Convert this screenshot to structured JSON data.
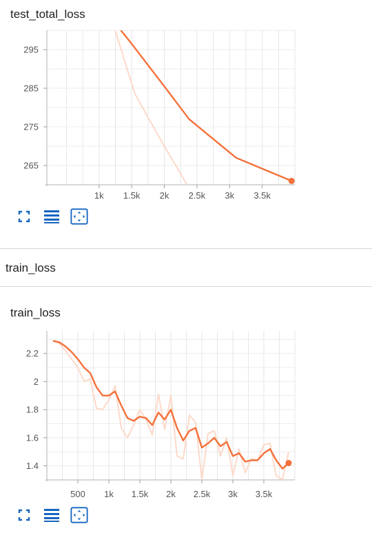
{
  "colors": {
    "accent": "#f4703a",
    "raw": "#fdd9c9",
    "grid": "#e3e3e3",
    "icon": "#1565c0"
  },
  "cards": [
    {
      "title": "test_total_loss",
      "chart_data": {
        "type": "line",
        "title": "test_total_loss",
        "xlim": [
          200,
          4000
        ],
        "ylim": [
          260,
          300
        ],
        "xticks": [
          1000,
          1500,
          2000,
          2500,
          3000,
          3500
        ],
        "xtick_labels": [
          "1k",
          "1.5k",
          "2k",
          "2.5k",
          "3k",
          "3.5k"
        ],
        "yticks": [
          265,
          275,
          285,
          295
        ],
        "ytick_labels": [
          "265",
          "275",
          "285",
          "295"
        ],
        "grid": true,
        "series": [
          {
            "role": "smoothed",
            "x": [
              1100,
              1500,
              2000,
              2380,
              3100,
              3950
            ],
            "y": [
              305,
              296.5,
              285.5,
              277,
              267,
              261
            ]
          },
          {
            "role": "raw",
            "x": [
              1100,
              1550,
              2000,
              2350
            ],
            "y": [
              308,
              283.5,
              270,
              260
            ]
          }
        ]
      }
    },
    {
      "title": "train_loss",
      "chart_data": {
        "type": "line",
        "title": "train_loss",
        "xlim": [
          0,
          4000
        ],
        "ylim": [
          1.3,
          2.36
        ],
        "xticks": [
          500,
          1000,
          1500,
          2000,
          2500,
          3000,
          3500
        ],
        "xtick_labels": [
          "500",
          "1k",
          "1.5k",
          "2k",
          "2.5k",
          "3k",
          "3.5k"
        ],
        "yticks": [
          1.4,
          1.6,
          1.8,
          2.0,
          2.2
        ],
        "ytick_labels": [
          "1.4",
          "1.6",
          "1.8",
          "2",
          "2.2"
        ],
        "grid": true,
        "series": [
          {
            "role": "smoothed",
            "x": [
              100,
              200,
              300,
              400,
              500,
              600,
              700,
              800,
              900,
              1000,
              1100,
              1200,
              1300,
              1400,
              1500,
              1600,
              1700,
              1800,
              1900,
              2000,
              2100,
              2200,
              2300,
              2400,
              2500,
              2600,
              2700,
              2800,
              2900,
              3000,
              3100,
              3200,
              3300,
              3400,
              3500,
              3600,
              3700,
              3800,
              3900
            ],
            "y": [
              2.29,
              2.28,
              2.25,
              2.21,
              2.16,
              2.1,
              2.06,
              1.96,
              1.9,
              1.9,
              1.93,
              1.83,
              1.74,
              1.72,
              1.75,
              1.74,
              1.69,
              1.78,
              1.73,
              1.8,
              1.67,
              1.58,
              1.65,
              1.67,
              1.53,
              1.56,
              1.6,
              1.54,
              1.57,
              1.47,
              1.49,
              1.43,
              1.44,
              1.44,
              1.49,
              1.52,
              1.44,
              1.38,
              1.42
            ]
          },
          {
            "role": "raw",
            "x": [
              100,
              200,
              300,
              400,
              500,
              600,
              700,
              800,
              900,
              1000,
              1100,
              1200,
              1300,
              1400,
              1500,
              1600,
              1700,
              1800,
              1900,
              2000,
              2100,
              2200,
              2300,
              2400,
              2500,
              2600,
              2700,
              2800,
              2900,
              3000,
              3100,
              3200,
              3300,
              3400,
              3500,
              3600,
              3700,
              3800,
              3900
            ],
            "y": [
              2.29,
              2.27,
              2.22,
              2.16,
              2.1,
              2.0,
              2.02,
              1.81,
              1.8,
              1.87,
              1.97,
              1.67,
              1.6,
              1.69,
              1.8,
              1.73,
              1.62,
              1.91,
              1.66,
              1.9,
              1.47,
              1.45,
              1.76,
              1.71,
              1.3,
              1.63,
              1.65,
              1.47,
              1.6,
              1.33,
              1.52,
              1.35,
              1.45,
              1.44,
              1.55,
              1.56,
              1.33,
              1.3,
              1.5
            ]
          }
        ]
      }
    }
  ],
  "section": {
    "label": "train_loss"
  }
}
